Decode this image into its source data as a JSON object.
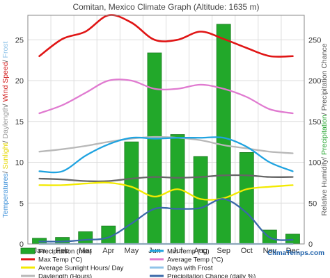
{
  "chart_data": {
    "type": "bar",
    "title": "Comitan, Mexico Climate Graph (Altitude: 1635 m)",
    "categories": [
      "Jan",
      "Feb",
      "Mar",
      "Apr",
      "May",
      "Jun",
      "Jul",
      "Aug",
      "Sep",
      "Oct",
      "Nov",
      "Dec"
    ],
    "left_axis": {
      "range": [
        0,
        28
      ],
      "ticks": [
        0,
        5,
        10,
        15,
        20,
        25
      ],
      "label_parts": [
        {
          "text": "Temperatures",
          "color": "#3b8fd9"
        },
        {
          "text": "/ ",
          "color": "#555555"
        },
        {
          "text": "Sunlight",
          "color": "#e6d800"
        },
        {
          "text": "/ ",
          "color": "#555555"
        },
        {
          "text": "Daylength",
          "color": "#999999"
        },
        {
          "text": "/ ",
          "color": "#555555"
        },
        {
          "text": "Wind Speed",
          "color": "#d11a1a"
        },
        {
          "text": "/ ",
          "color": "#555555"
        },
        {
          "text": "Frost",
          "color": "#8fc3e8"
        }
      ]
    },
    "right_axis": {
      "range": [
        0,
        280
      ],
      "ticks": [
        0,
        50,
        100,
        150,
        200,
        250
      ],
      "label_parts": [
        {
          "text": "Relative Humidity",
          "color": "#555555"
        },
        {
          "text": "/ ",
          "color": "#555555"
        },
        {
          "text": "Precipitation",
          "color": "#1fa32a"
        },
        {
          "text": "/ ",
          "color": "#555555"
        },
        {
          "text": "Precipitation Chance",
          "color": "#555555"
        }
      ]
    },
    "grid": true,
    "series": [
      {
        "name": "Precipitation (mm)",
        "kind": "bar",
        "axis": "right",
        "color": "#22a82a",
        "values": [
          7,
          8,
          15,
          22,
          125,
          234,
          134,
          107,
          269,
          112,
          17,
          12
        ]
      },
      {
        "name": "Min Temp (°C)",
        "kind": "line",
        "axis": "left",
        "color": "#1fa3e0",
        "values": [
          8.9,
          8.9,
          10.8,
          12.2,
          13.0,
          12.9,
          13.0,
          13.0,
          13.0,
          11.9,
          10.0,
          8.9
        ]
      },
      {
        "name": "Max Temp (°C)",
        "kind": "line",
        "axis": "left",
        "color": "#e01515",
        "values": [
          23.0,
          25.1,
          26.0,
          28.0,
          27.1,
          25.0,
          25.0,
          26.0,
          25.1,
          24.0,
          23.0,
          23.0
        ]
      },
      {
        "name": "Average Temp (°C)",
        "kind": "line",
        "axis": "left",
        "color": "#e07ad0",
        "values": [
          16.0,
          17.0,
          18.5,
          20.0,
          20.0,
          19.0,
          19.0,
          19.5,
          19.0,
          18.0,
          16.5,
          16.0
        ]
      },
      {
        "name": "Average Sunlight Hours/ Day",
        "kind": "line",
        "axis": "left",
        "color": "#f3ea00",
        "values": [
          7.2,
          7.2,
          7.4,
          7.5,
          7.0,
          5.8,
          6.7,
          5.5,
          5.6,
          6.7,
          7.0,
          7.2
        ]
      },
      {
        "name": "Days with Frost",
        "kind": "line",
        "axis": "left",
        "color": "#8fc3e8",
        "values": [
          0,
          0,
          0,
          0,
          0,
          0,
          0,
          0,
          0,
          0,
          0,
          0
        ]
      },
      {
        "name": "Daylength (Hours)",
        "kind": "line",
        "axis": "left",
        "color": "#b8b8b8",
        "values": [
          11.3,
          11.6,
          12.0,
          12.5,
          12.9,
          13.1,
          13.0,
          12.7,
          12.1,
          11.7,
          11.3,
          11.1
        ]
      },
      {
        "name": "Precipitation Chance (daily %)",
        "kind": "line",
        "axis": "right",
        "color": "#3a68a8",
        "values": [
          3,
          3,
          5,
          8,
          25,
          43,
          43,
          44,
          55,
          38,
          8,
          5
        ]
      },
      {
        "name": "Relative Humidity (%)",
        "kind": "line",
        "axis": "right",
        "color": "#666666",
        "values": [
          80,
          79,
          77,
          77,
          80,
          82,
          81,
          82,
          84,
          84,
          82,
          82
        ]
      }
    ],
    "legend_placement": "bottom",
    "brand": "ClimaTemps.com"
  }
}
